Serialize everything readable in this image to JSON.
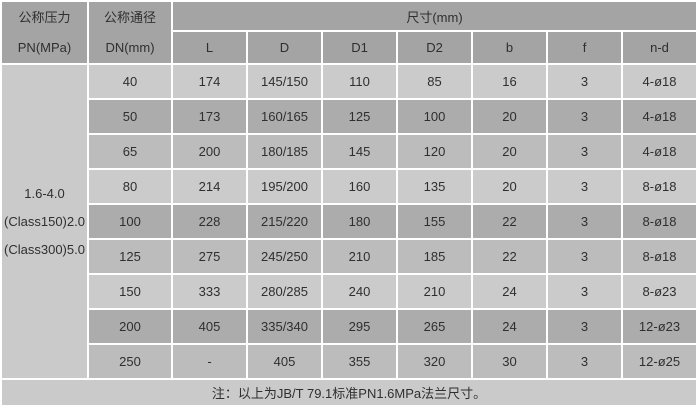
{
  "colors": {
    "header-bg": "#a4a4a4",
    "row-light": "#cbcbcb",
    "row-medium": "#bcbcbc",
    "row-dark": "#acacac",
    "side-bg": "#cacaca",
    "note-bg": "#cacaca",
    "gap": "#ffffff",
    "text": "#2f2f2f"
  },
  "table": {
    "header": {
      "pressure_line1": "公称压力",
      "pressure_line2": "PN(MPa)",
      "dn_line1": "公称通径",
      "dn_line2": "DN(mm)",
      "size_header": "尺寸(mm)",
      "dim_columns": [
        "L",
        "D",
        "D1",
        "D2",
        "b",
        "f",
        "n-d"
      ]
    },
    "pressure_lines": [
      "1.6-4.0",
      "(Class150)2.0",
      "(Class300)5.0"
    ],
    "rows": [
      {
        "dn": "40",
        "l": "174",
        "d": "145/150",
        "d1": "110",
        "d2": "85",
        "b": "16",
        "f": "3",
        "nd": "4-ø18",
        "shade": "light"
      },
      {
        "dn": "50",
        "l": "173",
        "d": "160/165",
        "d1": "125",
        "d2": "100",
        "b": "20",
        "f": "3",
        "nd": "4-ø18",
        "shade": "dark"
      },
      {
        "dn": "65",
        "l": "200",
        "d": "180/185",
        "d1": "145",
        "d2": "120",
        "b": "20",
        "f": "3",
        "nd": "4-ø18",
        "shade": "medium"
      },
      {
        "dn": "80",
        "l": "214",
        "d": "195/200",
        "d1": "160",
        "d2": "135",
        "b": "20",
        "f": "3",
        "nd": "8-ø18",
        "shade": "light"
      },
      {
        "dn": "100",
        "l": "228",
        "d": "215/220",
        "d1": "180",
        "d2": "155",
        "b": "22",
        "f": "3",
        "nd": "8-ø18",
        "shade": "dark"
      },
      {
        "dn": "125",
        "l": "275",
        "d": "245/250",
        "d1": "210",
        "d2": "185",
        "b": "22",
        "f": "3",
        "nd": "8-ø18",
        "shade": "medium"
      },
      {
        "dn": "150",
        "l": "333",
        "d": "280/285",
        "d1": "240",
        "d2": "210",
        "b": "24",
        "f": "3",
        "nd": "8-ø23",
        "shade": "light"
      },
      {
        "dn": "200",
        "l": "405",
        "d": "335/340",
        "d1": "295",
        "d2": "265",
        "b": "24",
        "f": "3",
        "nd": "12-ø23",
        "shade": "dark"
      },
      {
        "dn": "250",
        "l": "-",
        "d": "405",
        "d1": "355",
        "d2": "320",
        "b": "30",
        "f": "3",
        "nd": "12-ø25",
        "shade": "medium"
      }
    ],
    "note": "注：以上为JB/T 79.1标准PN1.6MPa法兰尺寸。"
  }
}
